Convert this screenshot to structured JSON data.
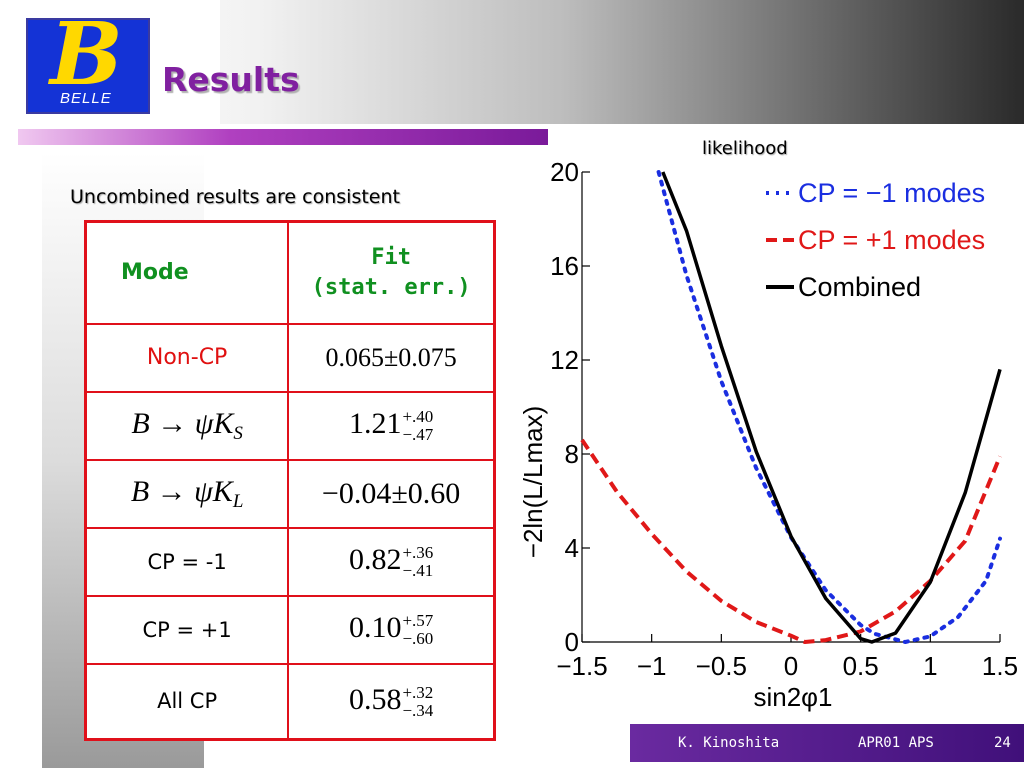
{
  "header": {
    "logo_text": "BELLE",
    "logo_letter": "B",
    "title": "Results"
  },
  "subtitle": "Uncombined results are consistent",
  "table": {
    "col_mode": "Mode",
    "col_fit_line1": "Fit",
    "col_fit_line2": "(stat. err.)",
    "rows": [
      {
        "mode": "Non-CP",
        "fit": "0.065±0.075"
      },
      {
        "mode_B": "B",
        "mode_arrow": "→",
        "mode_psi": "ψ",
        "mode_K": "K",
        "mode_sub": "S",
        "fit_main": "1.21",
        "fit_up": "+.40",
        "fit_dn": "−.47"
      },
      {
        "mode_B": "B",
        "mode_arrow": "→",
        "mode_psi": "ψ",
        "mode_K": "K",
        "mode_sub": "L",
        "fit": "−0.04±0.60"
      },
      {
        "mode": "CP = -1",
        "fit_main": "0.82",
        "fit_up": "+.36",
        "fit_dn": "−.41"
      },
      {
        "mode": "CP = +1",
        "fit_main": "0.10",
        "fit_up": "+.57",
        "fit_dn": "−.60"
      },
      {
        "mode": "All CP",
        "fit_main": "0.58",
        "fit_up": "+.32",
        "fit_dn": "−.34"
      }
    ]
  },
  "chart_label": "likelihood",
  "chart_data": {
    "type": "line",
    "xlabel": "sin2φ1",
    "ylabel": "−2ln(L/Lmax)",
    "xlim": [
      -1.5,
      1.5
    ],
    "ylim": [
      0,
      20
    ],
    "xticks": [
      -1.5,
      -1,
      -0.5,
      0,
      0.5,
      1,
      1.5
    ],
    "xtick_labels": [
      "−1.5",
      "−1",
      "−0.5",
      "0",
      "0.5",
      "1",
      "1.5"
    ],
    "yticks": [
      0,
      4,
      8,
      12,
      16,
      20
    ],
    "ytick_labels": [
      "0",
      "4",
      "8",
      "12",
      "16",
      "20"
    ],
    "legend_position": "top-right",
    "series": [
      {
        "name": "CP = −1 modes",
        "color": "#1a2ee0",
        "dash": "dotted",
        "x": [
          -0.95,
          -0.75,
          -0.5,
          -0.25,
          0,
          0.25,
          0.5,
          0.6,
          0.82,
          1.0,
          1.2,
          1.4,
          1.5
        ],
        "y": [
          20.0,
          15.6,
          11.1,
          7.4,
          4.45,
          2.2,
          0.72,
          0.35,
          0.0,
          0.24,
          1.07,
          2.61,
          4.4
        ]
      },
      {
        "name": "CP = +1 modes",
        "color": "#e01818",
        "dash": "dashed",
        "x": [
          -1.5,
          -1.25,
          -1.0,
          -0.75,
          -0.5,
          -0.25,
          0.0,
          0.1,
          0.25,
          0.5,
          0.75,
          1.0,
          1.25,
          1.5
        ],
        "y": [
          8.6,
          6.4,
          4.6,
          3.0,
          1.75,
          0.85,
          0.27,
          0.0,
          0.08,
          0.45,
          1.3,
          2.6,
          4.3,
          7.9
        ]
      },
      {
        "name": "Combined",
        "color": "#000000",
        "dash": "solid",
        "x": [
          -0.92,
          -0.75,
          -0.5,
          -0.25,
          0,
          0.25,
          0.5,
          0.58,
          0.75,
          1.0,
          1.25,
          1.5
        ],
        "y": [
          20.0,
          17.5,
          12.6,
          8.1,
          4.5,
          1.85,
          0.14,
          0.0,
          0.38,
          2.55,
          6.35,
          11.6
        ]
      }
    ]
  },
  "footer": {
    "author": "K. Kinoshita",
    "event": "APR01 APS",
    "page": "24"
  }
}
